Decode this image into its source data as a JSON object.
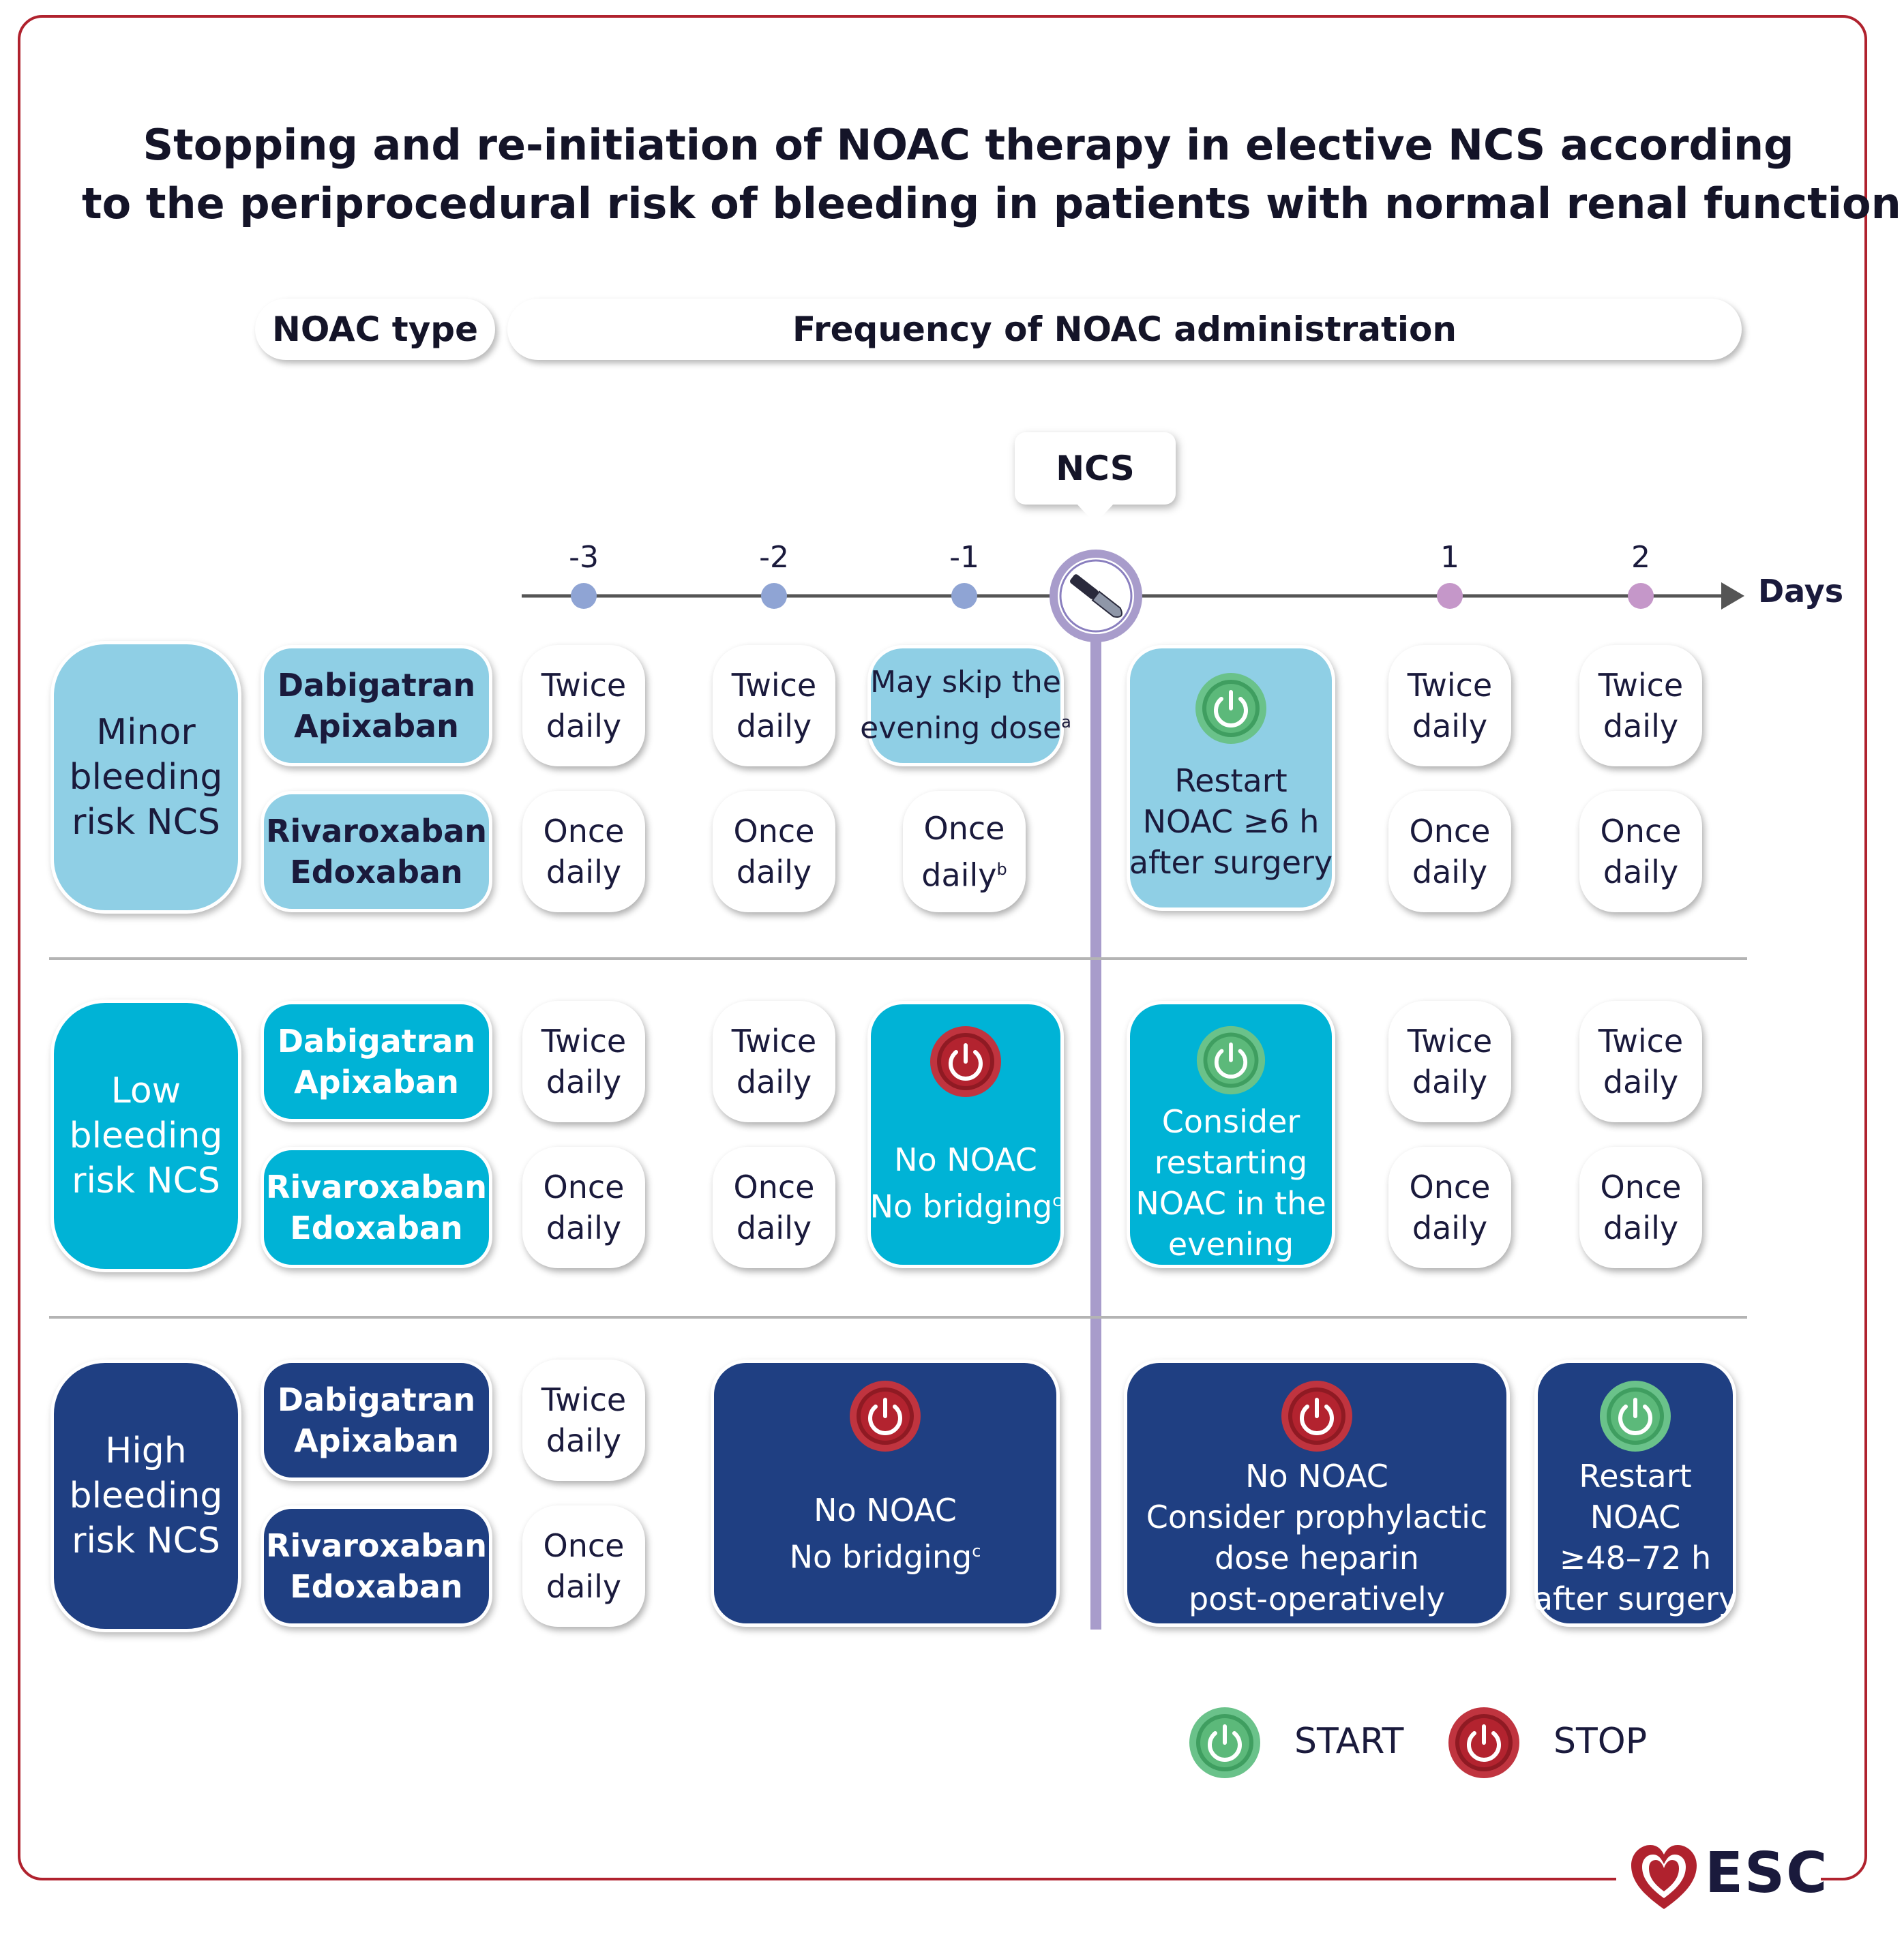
{
  "title": {
    "line1": "Stopping and re-initiation of NOAC therapy in elective NCS according",
    "line2": "to the periprocedural risk of bleeding in patients with normal renal function"
  },
  "headers": {
    "noac_type": "NOAC type",
    "frequency": "Frequency of NOAC administration"
  },
  "ncs_label": "NCS",
  "timeline": {
    "ticks": [
      "-3",
      "-2",
      "-1",
      "1",
      "2"
    ],
    "axis_label": "Days"
  },
  "rows": {
    "minor": {
      "risk": [
        "Minor",
        "bleeding",
        "risk NCS"
      ],
      "drug1": [
        "Dabigatran",
        "Apixaban"
      ],
      "drug2": [
        "Rivaroxaban",
        "Edoxaban"
      ],
      "twice": [
        "Twice",
        "daily"
      ],
      "once": [
        "Once",
        "daily"
      ],
      "skip": [
        "May skip the",
        "evening dose"
      ],
      "skip_sup": "a",
      "once_b": "Once",
      "daily_b": "daily",
      "once_b_sup": "b",
      "restart": [
        "Restart",
        "NOAC ≥6 h",
        "after surgery"
      ]
    },
    "low": {
      "risk": [
        "Low",
        "bleeding",
        "risk NCS"
      ],
      "drug1": [
        "Dabigatran",
        "Apixaban"
      ],
      "drug2": [
        "Rivaroxaban",
        "Edoxaban"
      ],
      "twice": [
        "Twice",
        "daily"
      ],
      "once": [
        "Once",
        "daily"
      ],
      "stop": [
        "No NOAC",
        "No bridging"
      ],
      "stop_sup": "c",
      "restart": [
        "Consider",
        "restarting",
        "NOAC in the",
        "evening"
      ]
    },
    "high": {
      "risk": [
        "High",
        "bleeding",
        "risk NCS"
      ],
      "drug1": [
        "Dabigatran",
        "Apixaban"
      ],
      "drug2": [
        "Rivaroxaban",
        "Edoxaban"
      ],
      "twice": [
        "Twice",
        "daily"
      ],
      "once": [
        "Once",
        "daily"
      ],
      "stop": [
        "No NOAC",
        "No bridging"
      ],
      "stop_sup": "c",
      "post": [
        "No NOAC",
        "Consider prophylactic",
        "dose heparin",
        "post-operatively"
      ],
      "restart": [
        "Restart",
        "NOAC",
        "≥48–72 h",
        "after surgery"
      ]
    }
  },
  "legend": {
    "start": "START",
    "stop": "STOP"
  },
  "logo": "ESC",
  "colors": {
    "minor": "#8fcfe5",
    "low": "#00b3d6",
    "high": "#1f3f82",
    "start_green": "#4fae6e",
    "stop_red": "#b3232f",
    "timeline_purple": "#a89ccb",
    "frame_red": "#b0222e"
  },
  "icons": [
    "scalpel-icon",
    "power-start-icon",
    "power-stop-icon",
    "esc-heart-logo"
  ]
}
